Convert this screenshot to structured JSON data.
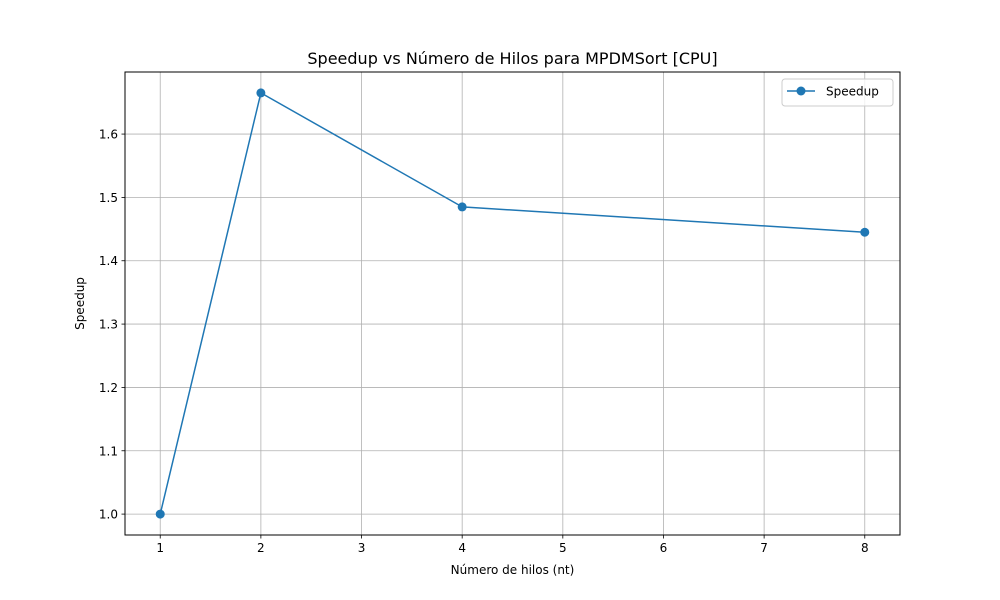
{
  "chart_data": {
    "type": "line",
    "title": "Speedup vs Número de Hilos para MPDMSort [CPU]",
    "xlabel": "Número de hilos (nt)",
    "ylabel": "Speedup",
    "x": [
      1,
      2,
      4,
      8
    ],
    "series": [
      {
        "name": "Speedup",
        "values": [
          1.0,
          1.665,
          1.485,
          1.445
        ],
        "color": "#1f77b4",
        "marker": "circle"
      }
    ],
    "xlim": [
      0.65,
      8.35
    ],
    "ylim": [
      0.967,
      1.698
    ],
    "xticks": [
      "1",
      "2",
      "3",
      "4",
      "5",
      "6",
      "7",
      "8"
    ],
    "yticks": [
      "1.0",
      "1.1",
      "1.2",
      "1.3",
      "1.4",
      "1.5",
      "1.6"
    ],
    "grid": true,
    "legend_position": "top-right",
    "grid_color": "#b0b0b0"
  }
}
